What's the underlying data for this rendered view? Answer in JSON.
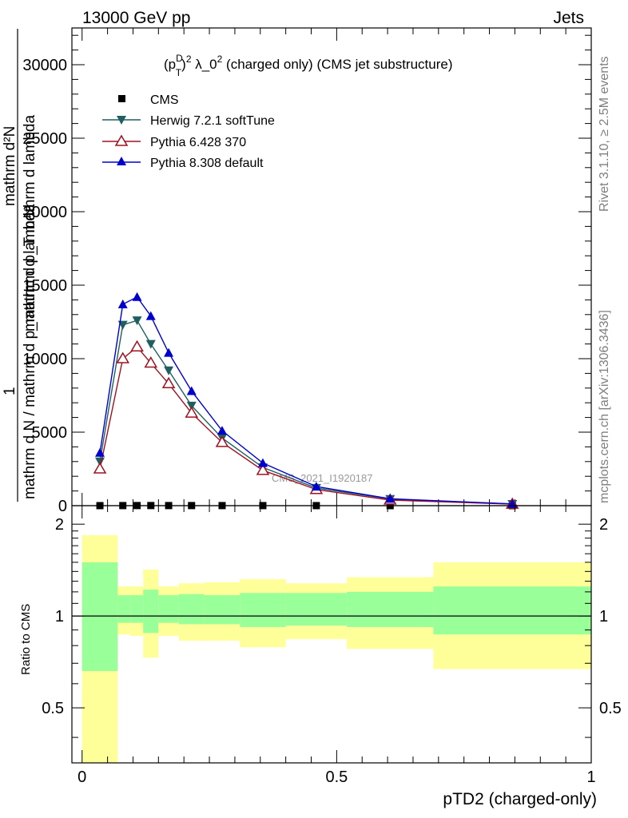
{
  "header": {
    "energy": "13000 GeV pp",
    "process": "Jets"
  },
  "side_labels": {
    "rivet": "Rivet 3.1.10, ≥ 2.5M events",
    "source": "mcplots.cern.ch [arXiv:1306.3436]"
  },
  "watermark": "CMS_2021_I1920187",
  "chart_data": [
    {
      "type": "line",
      "title": "(p_T^D)^2 λ_0^2 (charged only) (CMS jet substructure)",
      "title_parts": {
        "a": "(p",
        "sup1": "D",
        "sub1": "T",
        "b": ")",
        "sup2": "2",
        "c": " λ_0",
        "sup3": "2",
        "d": " (charged only) (CMS jet substructure)"
      },
      "ylabel_lines": [
        "1",
        "mathrm d N / mathrm d p_mathrm d lambda",
        "mathrm d²N",
        "mathrm d p_T mathrm d lambda"
      ],
      "ylim": [
        0,
        32500
      ],
      "yticks": [
        0,
        5000,
        10000,
        15000,
        20000,
        25000,
        30000
      ],
      "ytick_labels": [
        "0",
        "5000",
        "10000",
        "15000",
        "20000",
        "25000",
        "30000"
      ],
      "xlim": [
        -0.02,
        1.0
      ],
      "legend_position": "top-left",
      "x": [
        0.035,
        0.08,
        0.108,
        0.135,
        0.17,
        0.215,
        0.275,
        0.355,
        0.46,
        0.605,
        0.845
      ],
      "series": [
        {
          "name": "CMS",
          "color": "#000000",
          "marker": "square",
          "values": [
            2,
            5,
            7,
            8,
            6,
            6,
            5,
            4,
            3,
            1,
            0
          ]
        },
        {
          "name": "Herwig 7.2.1 softTune",
          "color": "#1f5f5f",
          "marker": "triangle-down",
          "values": [
            3000,
            12300,
            12600,
            11000,
            9200,
            6800,
            4600,
            2600,
            1200,
            450,
            110
          ]
        },
        {
          "name": "Pythia 6.428 370",
          "color": "#a01020",
          "marker": "triangle-up-open",
          "values": [
            2500,
            10000,
            10800,
            9700,
            8300,
            6300,
            4300,
            2400,
            1100,
            380,
            100
          ]
        },
        {
          "name": "Pythia 8.308 default",
          "color": "#0000cc",
          "marker": "triangle-up",
          "values": [
            3600,
            13700,
            14200,
            12900,
            10400,
            7800,
            5100,
            2900,
            1300,
            470,
            120
          ]
        }
      ]
    },
    {
      "type": "area",
      "ylabel": "Ratio to CMS",
      "xlabel": "pTD2 (charged-only)",
      "ylim": [
        0.33,
        2.3
      ],
      "log_y": true,
      "yticks": [
        0.5,
        1,
        2
      ],
      "ytick_labels": [
        "0.5",
        "1",
        "2"
      ],
      "xlim": [
        -0.02,
        1.0
      ],
      "xticks": [
        0,
        0.5,
        1
      ],
      "xtick_labels": [
        "0",
        "0.5",
        "1"
      ],
      "bands": {
        "bin_edges": [
          0,
          0.07,
          0.095,
          0.12,
          0.15,
          0.19,
          0.24,
          0.31,
          0.4,
          0.52,
          0.69,
          1.0
        ],
        "stat_low": [
          0.66,
          0.95,
          0.95,
          0.88,
          0.95,
          0.94,
          0.94,
          0.92,
          0.93,
          0.92,
          0.87
        ],
        "stat_high": [
          1.5,
          1.17,
          1.17,
          1.22,
          1.17,
          1.18,
          1.17,
          1.19,
          1.19,
          1.2,
          1.25
        ],
        "total_low": [
          0.33,
          0.87,
          0.86,
          0.73,
          0.86,
          0.83,
          0.83,
          0.79,
          0.84,
          0.78,
          0.67
        ],
        "total_high": [
          1.84,
          1.25,
          1.25,
          1.42,
          1.25,
          1.28,
          1.29,
          1.32,
          1.28,
          1.34,
          1.5
        ],
        "stat_color": "#99ff99",
        "total_color": "#ffff99"
      },
      "reference_line": 1
    }
  ]
}
